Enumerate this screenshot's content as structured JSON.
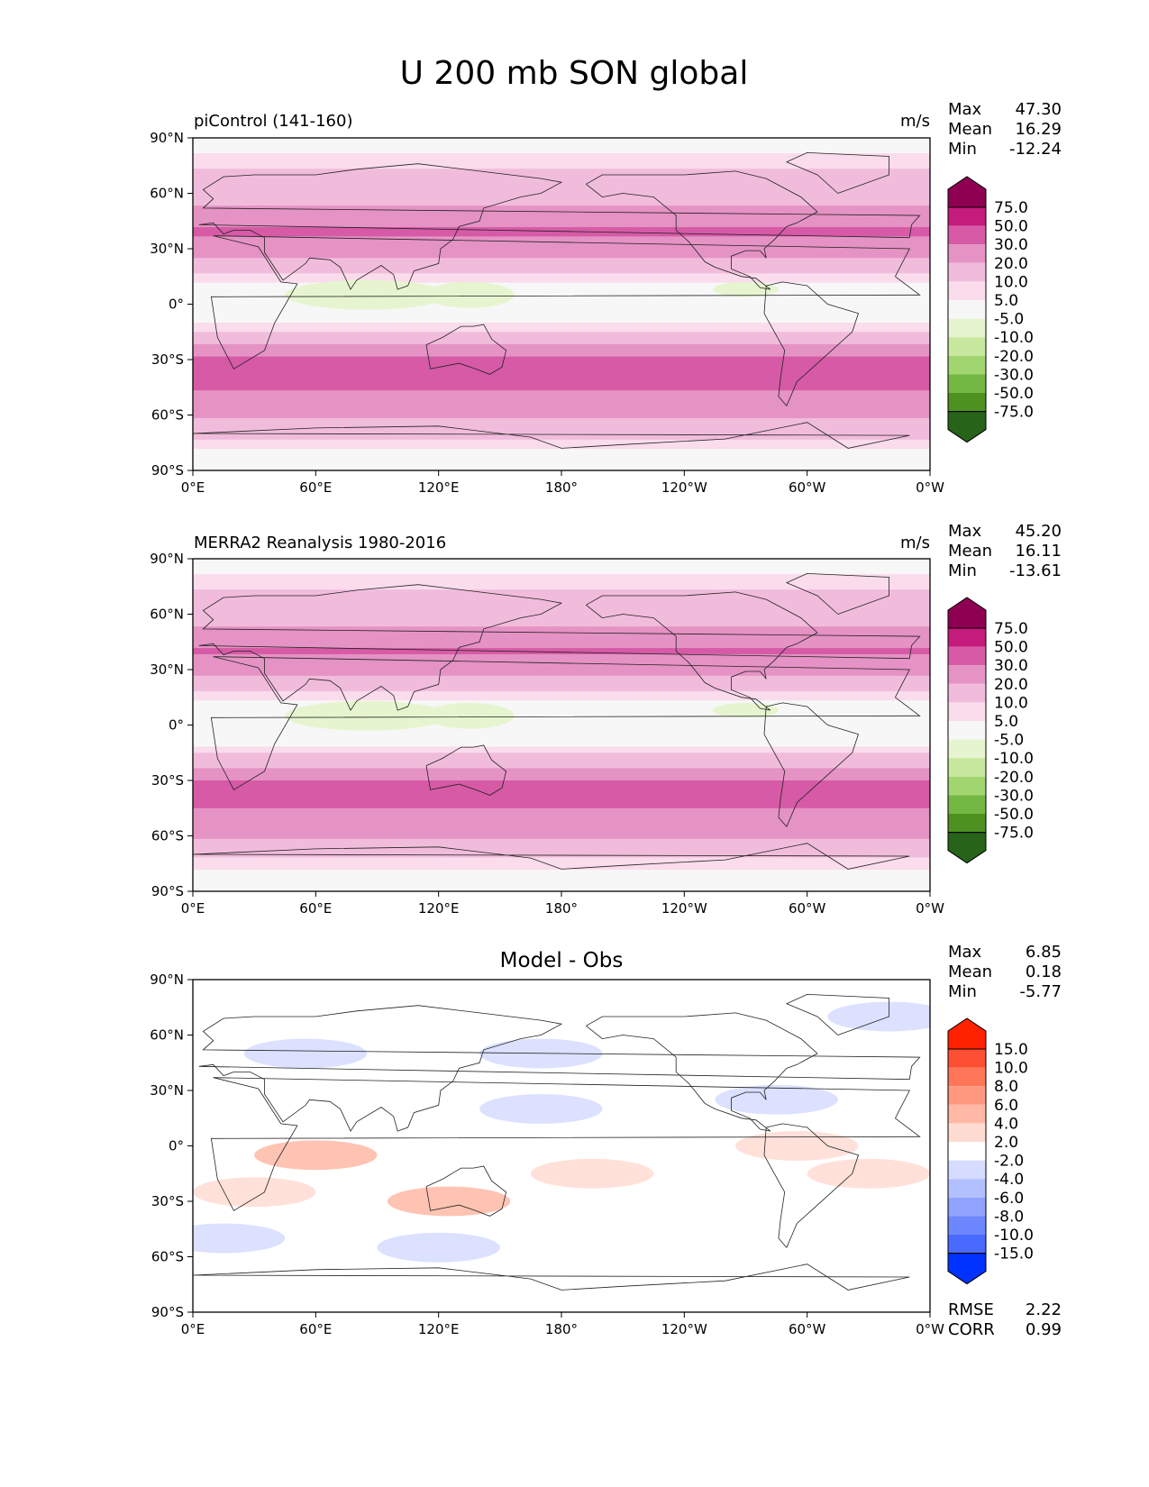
{
  "figure_title": "U 200 mb SON global",
  "chart_data": [
    {
      "type": "heatmap",
      "title": "piControl (141-160)",
      "units": "m/s",
      "stats": [
        {
          "label": "Max",
          "value": "47.30"
        },
        {
          "label": "Mean",
          "value": "16.29"
        },
        {
          "label": "Min",
          "value": "-12.24"
        }
      ],
      "colorbar": {
        "ticks": [
          "75.0",
          "50.0",
          "30.0",
          "20.0",
          "10.0",
          "5.0",
          "-5.0",
          "-10.0",
          "-20.0",
          "-30.0",
          "-50.0",
          "-75.0"
        ],
        "colors": [
          "#8e0152",
          "#c51b7d",
          "#d65aa6",
          "#e592c4",
          "#f1bcdb",
          "#fadcec",
          "#f7f7f7",
          "#e6f5d0",
          "#c7e89d",
          "#a1d570",
          "#74b844",
          "#4d9221",
          "#276419"
        ]
      },
      "xticks": [
        "0°E",
        "60°E",
        "120°E",
        "180°",
        "120°W",
        "60°W",
        "0°W"
      ],
      "yticks": [
        "90°N",
        "60°N",
        "30°N",
        "0°",
        "30°S",
        "60°S",
        "90°S"
      ],
      "xlim": [
        0,
        360
      ],
      "ylim": [
        -90,
        90
      ],
      "zonal_profile": [
        {
          "lat": 90,
          "u": 0
        },
        {
          "lat": 80,
          "u": 6
        },
        {
          "lat": 70,
          "u": 12
        },
        {
          "lat": 60,
          "u": 16
        },
        {
          "lat": 50,
          "u": 22
        },
        {
          "lat": 40,
          "u": 32
        },
        {
          "lat": 30,
          "u": 26
        },
        {
          "lat": 20,
          "u": 14
        },
        {
          "lat": 10,
          "u": 2
        },
        {
          "lat": 0,
          "u": -2
        },
        {
          "lat": -10,
          "u": 4
        },
        {
          "lat": -20,
          "u": 18
        },
        {
          "lat": -30,
          "u": 32
        },
        {
          "lat": -40,
          "u": 34
        },
        {
          "lat": -50,
          "u": 28
        },
        {
          "lat": -60,
          "u": 22
        },
        {
          "lat": -70,
          "u": 12
        },
        {
          "lat": -80,
          "u": 4
        },
        {
          "lat": -90,
          "u": 0
        }
      ]
    },
    {
      "type": "heatmap",
      "title": "MERRA2 Reanalysis 1980-2016",
      "units": "m/s",
      "stats": [
        {
          "label": "Max",
          "value": "45.20"
        },
        {
          "label": "Mean",
          "value": "16.11"
        },
        {
          "label": "Min",
          "value": "-13.61"
        }
      ],
      "colorbar": {
        "ticks": [
          "75.0",
          "50.0",
          "30.0",
          "20.0",
          "10.0",
          "5.0",
          "-5.0",
          "-10.0",
          "-20.0",
          "-30.0",
          "-50.0",
          "-75.0"
        ],
        "colors": [
          "#8e0152",
          "#c51b7d",
          "#d65aa6",
          "#e592c4",
          "#f1bcdb",
          "#fadcec",
          "#f7f7f7",
          "#e6f5d0",
          "#c7e89d",
          "#a1d570",
          "#74b844",
          "#4d9221",
          "#276419"
        ]
      },
      "xticks": [
        "0°E",
        "60°E",
        "120°E",
        "180°",
        "120°W",
        "60°W",
        "0°W"
      ],
      "yticks": [
        "90°N",
        "60°N",
        "30°N",
        "0°",
        "30°S",
        "60°S",
        "90°S"
      ],
      "xlim": [
        0,
        360
      ],
      "ylim": [
        -90,
        90
      ],
      "zonal_profile": [
        {
          "lat": 90,
          "u": 0
        },
        {
          "lat": 80,
          "u": 6
        },
        {
          "lat": 70,
          "u": 12
        },
        {
          "lat": 60,
          "u": 17
        },
        {
          "lat": 50,
          "u": 22
        },
        {
          "lat": 40,
          "u": 31
        },
        {
          "lat": 30,
          "u": 25
        },
        {
          "lat": 20,
          "u": 12
        },
        {
          "lat": 10,
          "u": 2
        },
        {
          "lat": 0,
          "u": -3
        },
        {
          "lat": -10,
          "u": 3
        },
        {
          "lat": -20,
          "u": 16
        },
        {
          "lat": -30,
          "u": 31
        },
        {
          "lat": -40,
          "u": 33
        },
        {
          "lat": -50,
          "u": 27
        },
        {
          "lat": -60,
          "u": 21
        },
        {
          "lat": -70,
          "u": 11
        },
        {
          "lat": -80,
          "u": 4
        },
        {
          "lat": -90,
          "u": 0
        }
      ]
    },
    {
      "type": "heatmap",
      "title": "Model - Obs",
      "units": "",
      "stats": [
        {
          "label": "Max",
          "value": "6.85"
        },
        {
          "label": "Mean",
          "value": "0.18"
        },
        {
          "label": "Min",
          "value": "-5.77"
        }
      ],
      "extra_stats": [
        {
          "label": "RMSE",
          "value": "2.22"
        },
        {
          "label": "CORR",
          "value": "0.99"
        }
      ],
      "colorbar": {
        "ticks": [
          "15.0",
          "10.0",
          "8.0",
          "6.0",
          "4.0",
          "2.0",
          "-2.0",
          "-4.0",
          "-6.0",
          "-8.0",
          "-10.0",
          "-15.0"
        ],
        "colors": [
          "#ff2200",
          "#ff4f33",
          "#ff7658",
          "#ff987e",
          "#ffb9a6",
          "#ffdcd2",
          "#ffffff",
          "#d5dcff",
          "#b3c0ff",
          "#90a3ff",
          "#6d87ff",
          "#486aff",
          "#0033ff"
        ]
      },
      "xticks": [
        "0°E",
        "60°E",
        "120°E",
        "180°",
        "120°W",
        "60°W",
        "0°W"
      ],
      "yticks": [
        "90°N",
        "60°N",
        "30°N",
        "0°",
        "30°S",
        "60°S",
        "90°S"
      ],
      "xlim": [
        0,
        360
      ],
      "ylim": [
        -90,
        90
      ],
      "anomalies": [
        {
          "lon": 60,
          "lat": -5,
          "u": 5
        },
        {
          "lon": 30,
          "lat": -25,
          "u": 3
        },
        {
          "lon": 125,
          "lat": -30,
          "u": 4
        },
        {
          "lon": 195,
          "lat": -15,
          "u": 3
        },
        {
          "lon": 295,
          "lat": 0,
          "u": 3
        },
        {
          "lon": 330,
          "lat": -15,
          "u": 3
        },
        {
          "lon": 170,
          "lat": 20,
          "u": -4
        },
        {
          "lon": 120,
          "lat": -55,
          "u": -4
        },
        {
          "lon": 55,
          "lat": 50,
          "u": -3
        },
        {
          "lon": 170,
          "lat": 50,
          "u": -3
        },
        {
          "lon": 340,
          "lat": 70,
          "u": -4
        },
        {
          "lon": 285,
          "lat": 25,
          "u": -3
        },
        {
          "lon": 15,
          "lat": -50,
          "u": -3
        }
      ]
    }
  ]
}
